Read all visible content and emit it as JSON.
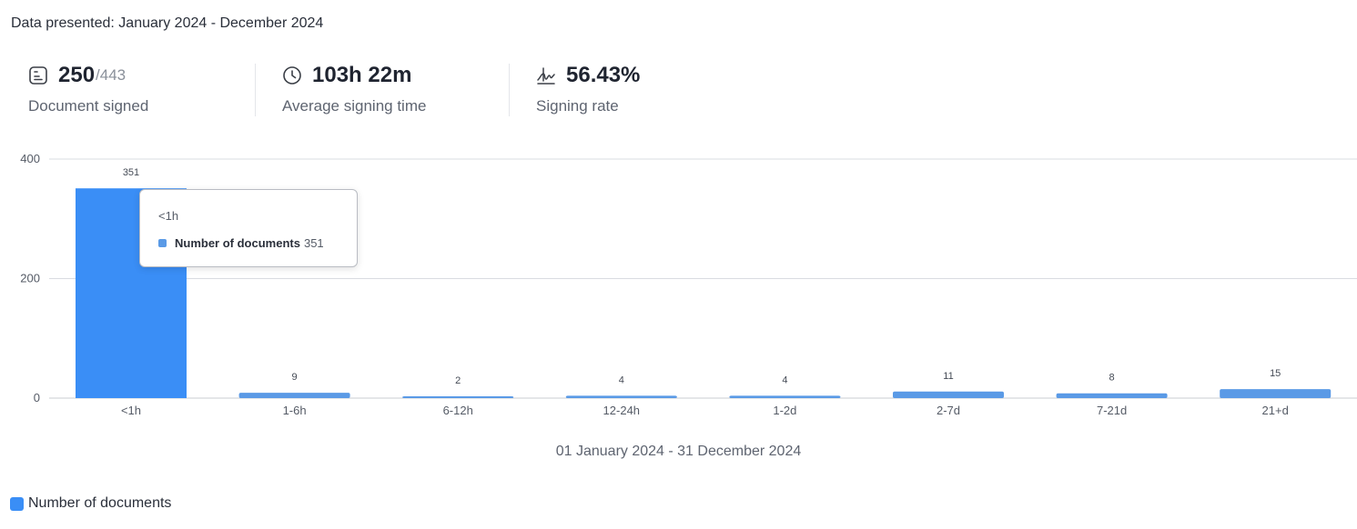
{
  "period_text": "Data presented: January 2024 - December 2024",
  "stats": [
    {
      "icon": "document-icon",
      "value": "250",
      "sub": "/443",
      "label": "Document signed"
    },
    {
      "icon": "clock-icon",
      "value": "103h 22m",
      "sub": "",
      "label": "Average signing time"
    },
    {
      "icon": "signature-icon",
      "value": "56.43%",
      "sub": "",
      "label": "Signing rate"
    }
  ],
  "chart_data": {
    "type": "bar",
    "categories": [
      "<1h",
      "1-6h",
      "6-12h",
      "12-24h",
      "1-2d",
      "2-7d",
      "7-21d",
      "21+d"
    ],
    "series": [
      {
        "name": "Number of documents",
        "values": [
          351,
          9,
          2,
          4,
          4,
          11,
          8,
          15
        ],
        "color": "#3a8ef6"
      }
    ],
    "yticks": [
      0,
      200,
      400
    ],
    "ylim": [
      0,
      400
    ],
    "grid": true,
    "data_labels": true,
    "xlabel": "01 January 2024 - 31 December 2024",
    "legend": "bottom-left",
    "highlight_color": "#3a8ef6",
    "muted_color": "#5a9ae6",
    "grid_color": "#d9dce1"
  },
  "tooltip": {
    "title": "<1h",
    "series_name": "Number of documents",
    "value": "351"
  },
  "legend_label": "Number of documents"
}
